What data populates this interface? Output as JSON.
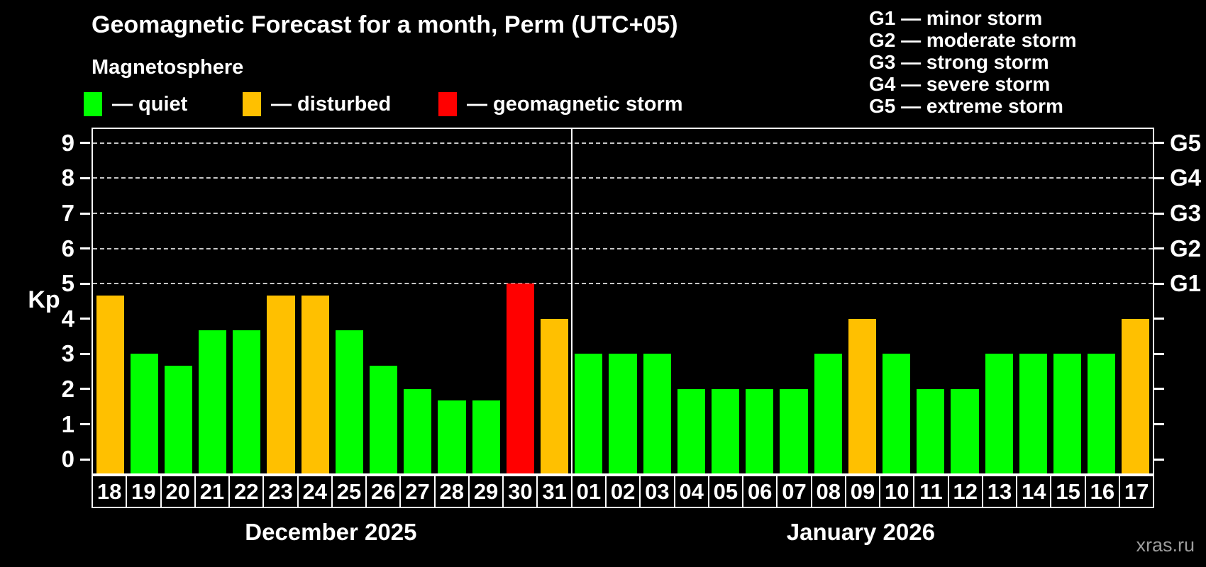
{
  "legend": {
    "items": [
      {
        "key": "quiet",
        "label": "— quiet",
        "color": "#00ff00"
      },
      {
        "key": "disturbed",
        "label": "— disturbed",
        "color": "#ffc000"
      },
      {
        "key": "storm",
        "label": "— geomagnetic storm",
        "color": "#ff0000"
      }
    ]
  },
  "g_scale_legend": {
    "items": [
      "G1 — minor storm",
      "G2 — moderate storm",
      "G3 — strong storm",
      "G4 — severe storm",
      "G5 — extreme storm"
    ]
  },
  "watermark": "xras.ru",
  "chart_data": {
    "type": "bar",
    "title": "Geomagnetic Forecast for a month, Perm (UTC+05)",
    "subtitle": "Magnetosphere",
    "ylabel": "Kp",
    "ylim": [
      -0.4,
      9.4
    ],
    "yticks": [
      0,
      1,
      2,
      3,
      4,
      5,
      6,
      7,
      8,
      9
    ],
    "grid_kp": [
      5,
      6,
      7,
      8,
      9
    ],
    "right_axis": [
      {
        "kp": 5,
        "label": "G1"
      },
      {
        "kp": 6,
        "label": "G2"
      },
      {
        "kp": 7,
        "label": "G3"
      },
      {
        "kp": 8,
        "label": "G4"
      },
      {
        "kp": 9,
        "label": "G5"
      }
    ],
    "color_map": {
      "quiet": "#00ff00",
      "disturbed": "#ffc000",
      "storm": "#ff0000"
    },
    "legend_position": "top",
    "grid": "dashed horizontal at G-storm levels only",
    "panels": [
      {
        "key": "dec",
        "label": "December 2025",
        "days": [
          {
            "day": "18",
            "kp": 4.67,
            "state": "disturbed"
          },
          {
            "day": "19",
            "kp": 3.0,
            "state": "quiet"
          },
          {
            "day": "20",
            "kp": 2.67,
            "state": "quiet"
          },
          {
            "day": "21",
            "kp": 3.67,
            "state": "quiet"
          },
          {
            "day": "22",
            "kp": 3.67,
            "state": "quiet"
          },
          {
            "day": "23",
            "kp": 4.67,
            "state": "disturbed"
          },
          {
            "day": "24",
            "kp": 4.67,
            "state": "disturbed"
          },
          {
            "day": "25",
            "kp": 3.67,
            "state": "quiet"
          },
          {
            "day": "26",
            "kp": 2.67,
            "state": "quiet"
          },
          {
            "day": "27",
            "kp": 2.0,
            "state": "quiet"
          },
          {
            "day": "28",
            "kp": 1.67,
            "state": "quiet"
          },
          {
            "day": "29",
            "kp": 1.67,
            "state": "quiet"
          },
          {
            "day": "30",
            "kp": 5.0,
            "state": "storm"
          },
          {
            "day": "31",
            "kp": 4.0,
            "state": "disturbed"
          }
        ]
      },
      {
        "key": "jan",
        "label": "January 2026",
        "days": [
          {
            "day": "01",
            "kp": 3.0,
            "state": "quiet"
          },
          {
            "day": "02",
            "kp": 3.0,
            "state": "quiet"
          },
          {
            "day": "03",
            "kp": 3.0,
            "state": "quiet"
          },
          {
            "day": "04",
            "kp": 2.0,
            "state": "quiet"
          },
          {
            "day": "05",
            "kp": 2.0,
            "state": "quiet"
          },
          {
            "day": "06",
            "kp": 2.0,
            "state": "quiet"
          },
          {
            "day": "07",
            "kp": 2.0,
            "state": "quiet"
          },
          {
            "day": "08",
            "kp": 3.0,
            "state": "quiet"
          },
          {
            "day": "09",
            "kp": 4.0,
            "state": "disturbed"
          },
          {
            "day": "10",
            "kp": 3.0,
            "state": "quiet"
          },
          {
            "day": "11",
            "kp": 2.0,
            "state": "quiet"
          },
          {
            "day": "12",
            "kp": 2.0,
            "state": "quiet"
          },
          {
            "day": "13",
            "kp": 3.0,
            "state": "quiet"
          },
          {
            "day": "14",
            "kp": 3.0,
            "state": "quiet"
          },
          {
            "day": "15",
            "kp": 3.0,
            "state": "quiet"
          },
          {
            "day": "16",
            "kp": 3.0,
            "state": "quiet"
          },
          {
            "day": "17",
            "kp": 4.0,
            "state": "disturbed"
          }
        ]
      }
    ]
  }
}
